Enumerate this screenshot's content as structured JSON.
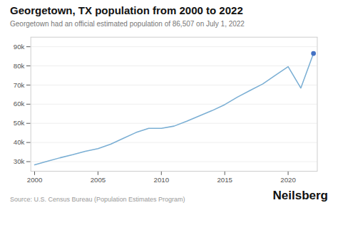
{
  "chart_data": {
    "type": "line",
    "title": "Georgetown, TX population from 2000 to 2022",
    "subtitle": "Georgetown had an official estimated population of 86,507 on July 1, 2022",
    "source": "Source: U.S. Census Bureau (Population Estimates Program)",
    "branding": "Neilsberg",
    "x": [
      2000,
      2001,
      2002,
      2003,
      2004,
      2005,
      2006,
      2007,
      2008,
      2009,
      2010,
      2011,
      2012,
      2013,
      2014,
      2015,
      2016,
      2017,
      2018,
      2019,
      2020,
      2021,
      2022
    ],
    "series": [
      {
        "type": "line",
        "color": "#7bafd4",
        "values": [
          28339,
          30219,
          32003,
          33614,
          35381,
          36799,
          39118,
          42210,
          45217,
          47400,
          47400,
          48548,
          51080,
          53898,
          56648,
          59770,
          63716,
          67176,
          70580,
          75132,
          79604,
          68415,
          86507
        ]
      },
      {
        "type": "scatter",
        "color": "#4472c4",
        "values": [
          null,
          null,
          null,
          null,
          null,
          null,
          null,
          null,
          null,
          null,
          null,
          null,
          null,
          null,
          null,
          null,
          null,
          null,
          null,
          null,
          null,
          null,
          86507
        ]
      }
    ],
    "xlim": [
      1999.7,
      2022.3
    ],
    "xticks": [
      2000,
      2005,
      2010,
      2015,
      2020
    ],
    "ylim": [
      25000,
      95000
    ],
    "yticks": [
      {
        "value": 30000,
        "label": "30k"
      },
      {
        "value": 40000,
        "label": "40k"
      },
      {
        "value": 50000,
        "label": "50k"
      },
      {
        "value": 60000,
        "label": "60k"
      },
      {
        "value": 70000,
        "label": "70k"
      },
      {
        "value": 80000,
        "label": "80k"
      },
      {
        "value": 90000,
        "label": "90k"
      }
    ],
    "grid": "y"
  }
}
